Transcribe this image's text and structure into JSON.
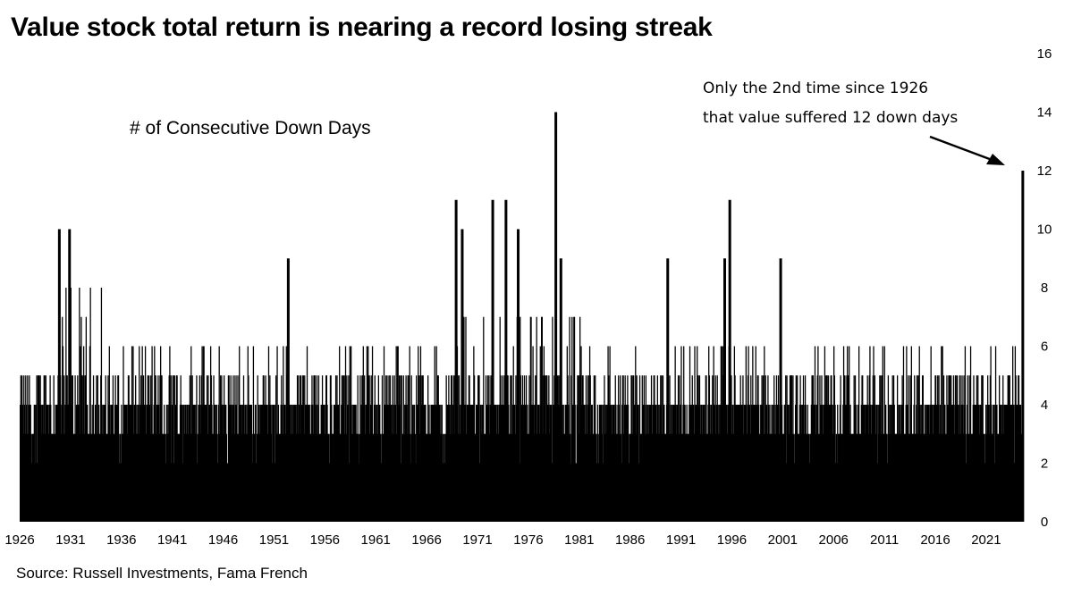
{
  "title": "Value stock total return is nearing a record losing streak",
  "source": "Source: Russell Investments, Fama French",
  "chart_data": {
    "type": "bar",
    "subtitle": "# of Consecutive Down Days",
    "annotation_line1": "Only the 2nd time since 1926",
    "annotation_line2": "that value suffered 12 down days",
    "x_tick_labels": [
      "1926",
      "1931",
      "1936",
      "1941",
      "1946",
      "1951",
      "1956",
      "1961",
      "1966",
      "1971",
      "1976",
      "1981",
      "1986",
      "1991",
      "1996",
      "2001",
      "2006",
      "2011",
      "2016",
      "2021"
    ],
    "y_tick_labels": [
      "0",
      "2",
      "4",
      "6",
      "8",
      "10",
      "12",
      "14",
      "16"
    ],
    "xlim": [
      1926,
      2024.7
    ],
    "ylim": [
      0,
      16
    ],
    "y_axis_side": "right",
    "bar_color": "#000000",
    "notable_streaks": [
      {
        "x": 1929.9,
        "value": 10
      },
      {
        "x": 1930.9,
        "value": 10
      },
      {
        "x": 1952.4,
        "value": 9
      },
      {
        "x": 1968.9,
        "value": 11
      },
      {
        "x": 1969.5,
        "value": 10
      },
      {
        "x": 1972.5,
        "value": 11
      },
      {
        "x": 1973.8,
        "value": 11
      },
      {
        "x": 1975.0,
        "value": 10
      },
      {
        "x": 1978.7,
        "value": 14
      },
      {
        "x": 1979.2,
        "value": 9
      },
      {
        "x": 1989.7,
        "value": 9
      },
      {
        "x": 1995.3,
        "value": 9
      },
      {
        "x": 1995.8,
        "value": 11
      },
      {
        "x": 2000.8,
        "value": 9
      },
      {
        "x": 2024.6,
        "value": 12
      }
    ],
    "baseline_by_period": [
      {
        "from": 1926,
        "to": 1928,
        "typical_peak": 5
      },
      {
        "from": 1928,
        "to": 1934,
        "typical_peak": 8
      },
      {
        "from": 1934,
        "to": 1946,
        "typical_peak": 6
      },
      {
        "from": 1946,
        "to": 1966,
        "typical_peak": 6
      },
      {
        "from": 1966,
        "to": 1983,
        "typical_peak": 7
      },
      {
        "from": 1983,
        "to": 2024,
        "typical_peak": 6
      }
    ]
  }
}
